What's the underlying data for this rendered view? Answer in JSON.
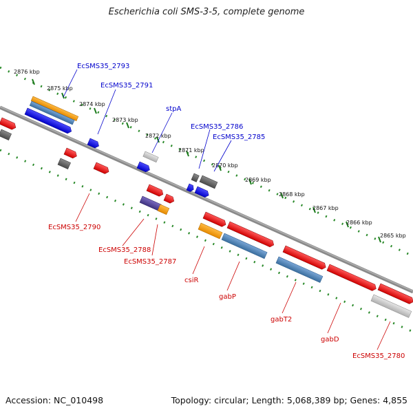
{
  "title": "Escherichia coli SMS-3-5, complete genome",
  "accession": "Accession: NC_010498",
  "summary": "Topology: circular; Length: 5,068,389 bp; Genes: 4,855",
  "colors": {
    "backbone": "#808080",
    "forward_gene": "#0000ee",
    "reverse_gene": "#ee0000",
    "forward_label": "#0000cc",
    "reverse_label": "#cc0000",
    "ticks": "#2a8a2a",
    "orange": "#ff9900",
    "steelblue": "#4682b4",
    "gray": "#606060",
    "lightgray": "#c8c8c8",
    "purple": "#5a4a9a"
  },
  "kbp_ticks": [
    "2876 kbp",
    "2875 kbp",
    "2874 kbp",
    "2873 kbp",
    "2872 kbp",
    "2871 kbp",
    "2870 kbp",
    "2869 kbp",
    "2868 kbp",
    "2867 kbp",
    "2866 kbp",
    "2865 kbp"
  ],
  "forward_labels": [
    "EcSMS35_2793",
    "EcSMS35_2791",
    "stpA",
    "EcSMS35_2786",
    "EcSMS35_2785"
  ],
  "reverse_labels": [
    "EcSMS35_2790",
    "EcSMS35_2788",
    "EcSMS35_2787",
    "csiR",
    "gabP",
    "gabT2",
    "gabD",
    "EcSMS35_2780"
  ]
}
